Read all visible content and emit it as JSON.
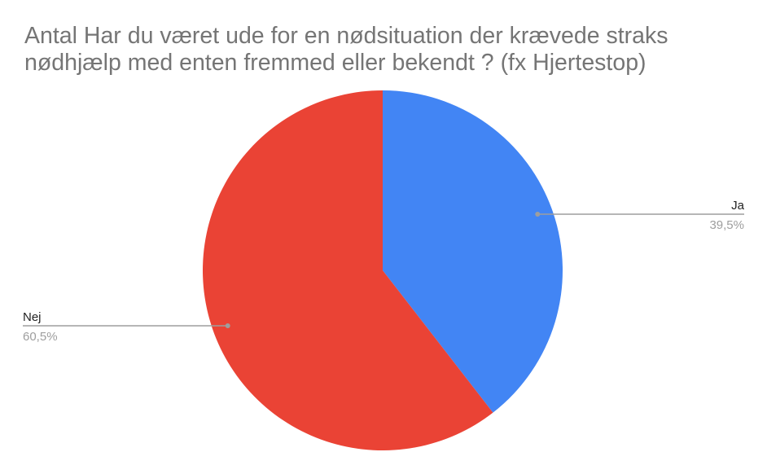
{
  "chart_data": {
    "type": "pie",
    "title": "Antal Har du været ude for en nødsituation der krævede straks nødhjælp med enten fremmed eller bekendt ? (fx Hjertestop)",
    "slices": [
      {
        "label": "Ja",
        "value": 39.5,
        "display": "39,5%",
        "color": "#4285F4"
      },
      {
        "label": "Nej",
        "value": 60.5,
        "display": "60,5%",
        "color": "#EA4335"
      }
    ],
    "legend": "none"
  }
}
